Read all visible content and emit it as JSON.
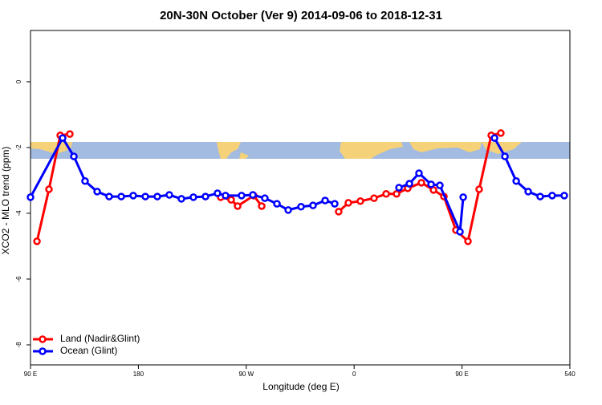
{
  "chart_data": {
    "type": "line",
    "title": "20N-30N October (Ver 9)   2014-09-06 to 2018-12-31",
    "x_label": "Longitude (deg E)",
    "y_label": "XCO2 - MLO trend (ppm)",
    "xlim": [
      90,
      540
    ],
    "ylim": [
      -8.61,
      1.56
    ],
    "xticks": [
      {
        "value": 90,
        "label": "90 E"
      },
      180,
      {
        "value": 270,
        "label": "90 W"
      },
      {
        "value": 360,
        "label": "0"
      },
      {
        "value": 450,
        "label": "90 E"
      },
      540
    ],
    "yticks": [
      0,
      -2,
      -4,
      -6,
      -8
    ],
    "legend": "bottom-left",
    "series": [
      {
        "name": "Land (Nadir&Glint)",
        "color": "#ff0000",
        "x": [
          95.4,
          105.4,
          114.8,
          122.8,
          null,
          248.7,
          257.4,
          262.8,
          276.2,
          282.9,
          null,
          347.1,
          355.2,
          365.2,
          376.6,
          386.7,
          395.4,
          404.7,
          416.1,
          426.2,
          434.9,
          444.9,
          455,
          464.3,
          474.4,
          482.4
        ],
        "values": [
          -4.85,
          -3.27,
          -1.63,
          -1.59,
          null,
          -3.51,
          -3.59,
          -3.78,
          -3.46,
          -3.78,
          null,
          -3.95,
          -3.68,
          -3.63,
          -3.54,
          -3.41,
          -3.41,
          -3.24,
          -3.07,
          -3.29,
          -3.49,
          -4.51,
          -4.85,
          -3.27,
          -1.63,
          -1.56
        ]
      },
      {
        "name": "Ocean (Glint)",
        "color": "#0000ff",
        "x": [
          90,
          116.8,
          126.2,
          135.5,
          145.6,
          155.6,
          165.7,
          175.7,
          185.8,
          195.8,
          205.8,
          215.9,
          225.9,
          236,
          246,
          252.7,
          266.1,
          275.5,
          285.5,
          295.6,
          305,
          315.7,
          325.7,
          335.8,
          343.8,
          null,
          397.4,
          406.1,
          414.1,
          424.2,
          431.5,
          448.3,
          451,
          null,
          477.1,
          485.8,
          495.2,
          505.2,
          515.2,
          525.2,
          535.3
        ],
        "values": [
          -3.51,
          -1.71,
          -2.27,
          -3.02,
          -3.34,
          -3.49,
          -3.49,
          -3.46,
          -3.49,
          -3.49,
          -3.44,
          -3.56,
          -3.51,
          -3.49,
          -3.39,
          -3.46,
          -3.46,
          -3.44,
          -3.54,
          -3.71,
          -3.9,
          -3.8,
          -3.76,
          -3.61,
          -3.71,
          null,
          -3.22,
          -3.1,
          -2.78,
          -3.12,
          -3.15,
          -4.56,
          -3.51,
          null,
          -1.71,
          -2.27,
          -3.02,
          -3.34,
          -3.49,
          -3.46,
          -3.46
        ]
      }
    ]
  }
}
